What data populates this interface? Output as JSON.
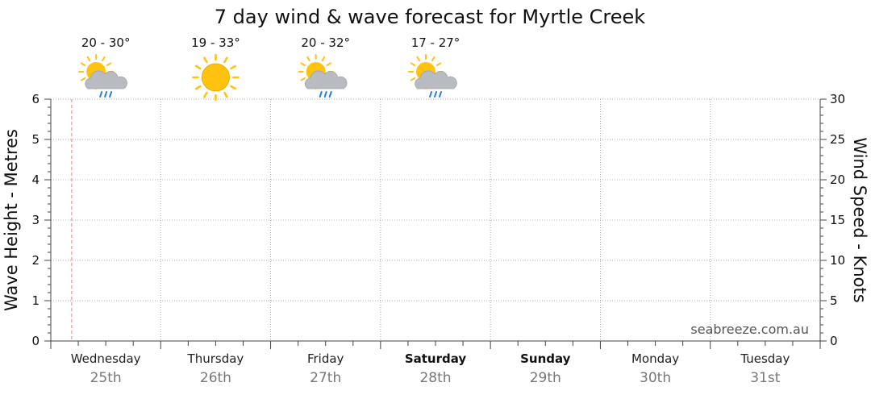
{
  "chart_data": {
    "type": "line",
    "title": "7 day wind & wave forecast for Myrtle Creek",
    "y_left": {
      "label": "Wave Height - Metres",
      "range": [
        0,
        6
      ],
      "ticks": [
        "0",
        "1",
        "2",
        "3",
        "4",
        "5",
        "6"
      ]
    },
    "y_right": {
      "label": "Wind Speed - Knots",
      "range": [
        0,
        30
      ],
      "ticks": [
        "0",
        "5",
        "10",
        "15",
        "20",
        "25",
        "30"
      ]
    },
    "grid": true,
    "days": [
      {
        "name": "Wednesday",
        "date": "25th",
        "bold": false,
        "temp": "20 - 30°",
        "icon": "sun-cloud-rain-icon"
      },
      {
        "name": "Thursday",
        "date": "26th",
        "bold": false,
        "temp": "19 - 33°",
        "icon": "sun-icon"
      },
      {
        "name": "Friday",
        "date": "27th",
        "bold": false,
        "temp": "20 - 32°",
        "icon": "sun-cloud-rain-icon"
      },
      {
        "name": "Saturday",
        "date": "28th",
        "bold": true,
        "temp": "17 - 27°",
        "icon": "sun-cloud-rain-icon"
      },
      {
        "name": "Sunday",
        "date": "29th",
        "bold": true,
        "temp": "",
        "icon": ""
      },
      {
        "name": "Monday",
        "date": "30th",
        "bold": false,
        "temp": "",
        "icon": ""
      },
      {
        "name": "Tuesday",
        "date": "31st",
        "bold": false,
        "temp": "",
        "icon": ""
      }
    ],
    "series": [],
    "credit": "seabreeze.com.au",
    "colors": {
      "grid": "#999999",
      "now_line": "#f08080",
      "sun": "#ffc20e",
      "cloud": "#b8bcc2",
      "rain": "#2a7de1"
    }
  }
}
